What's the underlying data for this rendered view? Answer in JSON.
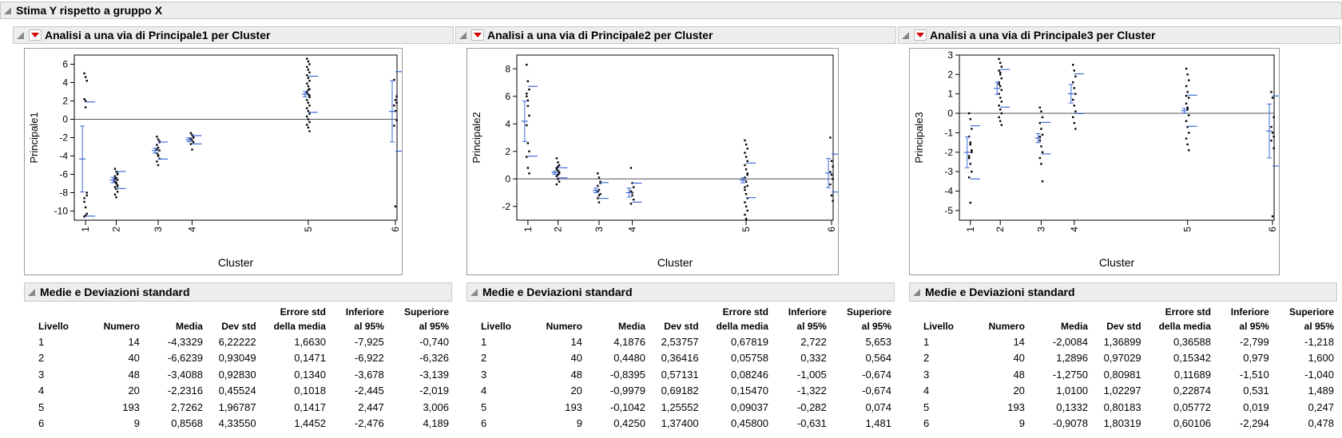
{
  "top_title": "Stima Y rispetto a gruppo X",
  "panels": [
    {
      "title": "Analisi a una via di Principale1 per Cluster",
      "ylabel": "Principale1",
      "xlabel": "Cluster",
      "table_title": "Medie e Deviazioni standard"
    },
    {
      "title": "Analisi a una via di Principale2 per Cluster",
      "ylabel": "Principale2",
      "xlabel": "Cluster",
      "table_title": "Medie e Deviazioni standard"
    },
    {
      "title": "Analisi a una via di Principale3 per Cluster",
      "ylabel": "Principale3",
      "xlabel": "Cluster",
      "table_title": "Medie e Deviazioni standard"
    }
  ],
  "table_headers": {
    "livello": "Livello",
    "numero": "Numero",
    "media": "Media",
    "devstd": "Dev std",
    "errore_1": "Errore std",
    "errore_2": "della media",
    "inferiore_1": "Inferiore",
    "inferiore_2": "al 95%",
    "superiore_1": "Superiore",
    "superiore_2": "al 95%"
  },
  "tables": [
    {
      "rows": [
        [
          "1",
          "14",
          "-4,3329",
          "6,22222",
          "1,6630",
          "-7,925",
          "-0,740"
        ],
        [
          "2",
          "40",
          "-6,6239",
          "0,93049",
          "0,1471",
          "-6,922",
          "-6,326"
        ],
        [
          "3",
          "48",
          "-3,4088",
          "0,92830",
          "0,1340",
          "-3,678",
          "-3,139"
        ],
        [
          "4",
          "20",
          "-2,2316",
          "0,45524",
          "0,1018",
          "-2,445",
          "-2,019"
        ],
        [
          "5",
          "193",
          "2,7262",
          "1,96787",
          "0,1417",
          "2,447",
          "3,006"
        ],
        [
          "6",
          "9",
          "0,8568",
          "4,33550",
          "1,4452",
          "-2,476",
          "4,189"
        ]
      ]
    },
    {
      "rows": [
        [
          "1",
          "14",
          "4,1876",
          "2,53757",
          "0,67819",
          "2,722",
          "5,653"
        ],
        [
          "2",
          "40",
          "0,4480",
          "0,36416",
          "0,05758",
          "0,332",
          "0,564"
        ],
        [
          "3",
          "48",
          "-0,8395",
          "0,57131",
          "0,08246",
          "-1,005",
          "-0,674"
        ],
        [
          "4",
          "20",
          "-0,9979",
          "0,69182",
          "0,15470",
          "-1,322",
          "-0,674"
        ],
        [
          "5",
          "193",
          "-0,1042",
          "1,25552",
          "0,09037",
          "-0,282",
          "0,074"
        ],
        [
          "6",
          "9",
          "0,4250",
          "1,37400",
          "0,45800",
          "-0,631",
          "1,481"
        ]
      ]
    },
    {
      "rows": [
        [
          "1",
          "14",
          "-2,0084",
          "1,36899",
          "0,36588",
          "-2,799",
          "-1,218"
        ],
        [
          "2",
          "40",
          "1,2896",
          "0,97029",
          "0,15342",
          "0,979",
          "1,600"
        ],
        [
          "3",
          "48",
          "-1,2750",
          "0,80981",
          "0,11689",
          "-1,510",
          "-1,040"
        ],
        [
          "4",
          "20",
          "1,0100",
          "1,02297",
          "0,22874",
          "0,531",
          "1,489"
        ],
        [
          "5",
          "193",
          "0,1332",
          "0,80183",
          "0,05772",
          "0,019",
          "0,247"
        ],
        [
          "6",
          "9",
          "-0,9078",
          "1,80319",
          "0,60106",
          "-2,294",
          "0,478"
        ]
      ]
    }
  ],
  "chart_data": [
    {
      "type": "scatter",
      "title": "",
      "xlabel": "Cluster",
      "ylabel": "Principale1",
      "ylim": [
        -11,
        7
      ],
      "yticks": [
        -10,
        -8,
        -6,
        -4,
        -2,
        0,
        2,
        4,
        6
      ],
      "categories": [
        "1",
        "2",
        "3",
        "4",
        "5",
        "6"
      ],
      "category_positions": [
        1,
        2,
        3,
        4,
        5,
        6
      ],
      "grand_mean": 0,
      "means": [
        -4.3329,
        -6.6239,
        -3.4088,
        -2.2316,
        2.7262,
        0.8568
      ],
      "std_dev": [
        6.22222,
        0.93049,
        0.9283,
        0.45524,
        1.96787,
        4.3355
      ],
      "ci_low": [
        -7.925,
        -6.922,
        -3.678,
        -2.445,
        2.447,
        -2.476
      ],
      "ci_high": [
        -0.74,
        -6.326,
        -3.139,
        -2.019,
        3.006,
        4.189
      ],
      "points": [
        [
          5,
          4.6,
          4.2,
          2.2,
          1.3,
          -8,
          -8.6,
          -9.6,
          -10.3,
          -10.6,
          -10.5,
          -8.3,
          -9,
          2
        ],
        [
          -5.4,
          -5.7,
          -6,
          -6.2,
          -6.4,
          -6.6,
          -6.8,
          -7,
          -7.2,
          -7.4,
          -7.6,
          -7.9,
          -8.2,
          -8.5,
          -5.9,
          -6.5,
          -6.9,
          -7.3
        ],
        [
          -1.9,
          -2.2,
          -2.5,
          -2.8,
          -3.1,
          -3.4,
          -3.7,
          -4,
          -4.3,
          -4.6,
          -5,
          -2.4,
          -3.3,
          -3.9
        ],
        [
          -1.5,
          -1.7,
          -1.9,
          -2.1,
          -2.3,
          -2.5,
          -2.7,
          -3.3,
          -2,
          -2.2
        ],
        [
          6.6,
          6.3,
          6,
          5.7,
          5.4,
          5.1,
          4.8,
          4.5,
          4.2,
          3.9,
          3.6,
          3.3,
          3,
          2.7,
          2.4,
          2.1,
          1.8,
          1.5,
          1.2,
          0.9,
          0.6,
          0.3,
          0,
          -0.3,
          -0.6,
          -0.9,
          -1.3,
          2.9,
          3.2,
          2.6
        ],
        [
          4.3,
          2.1,
          1.8,
          1.5,
          0.9,
          -0.1,
          -0.7,
          -9.5,
          2.5
        ]
      ]
    },
    {
      "type": "scatter",
      "title": "",
      "xlabel": "Cluster",
      "ylabel": "Principale2",
      "ylim": [
        -3,
        9
      ],
      "yticks": [
        -2,
        0,
        2,
        4,
        6,
        8
      ],
      "categories": [
        "1",
        "2",
        "3",
        "4",
        "5",
        "6"
      ],
      "category_positions": [
        1,
        2,
        3,
        4,
        5,
        6
      ],
      "grand_mean": 0,
      "means": [
        4.1876,
        0.448,
        -0.8395,
        -0.9979,
        -0.1042,
        0.425
      ],
      "std_dev": [
        2.53757,
        0.36416,
        0.57131,
        0.69182,
        1.25552,
        1.374
      ],
      "ci_low": [
        2.722,
        0.332,
        -1.005,
        -1.322,
        -0.282,
        -0.631
      ],
      "ci_high": [
        5.653,
        0.564,
        -0.674,
        -0.674,
        0.074,
        1.481
      ],
      "points": [
        [
          8.3,
          7.1,
          6.5,
          6,
          5.3,
          4.6,
          3.9,
          2.6,
          2,
          1.6,
          0.8,
          0.4,
          6.2,
          5.7
        ],
        [
          1.5,
          1.2,
          1,
          0.8,
          0.6,
          0.4,
          0.2,
          0,
          -0.2,
          -0.4,
          0.3,
          0.5,
          0.7,
          0.9
        ],
        [
          0.4,
          0.1,
          -0.2,
          -0.5,
          -0.8,
          -1.1,
          -1.4,
          -1.7,
          -0.3,
          -0.9,
          -1.2
        ],
        [
          0.8,
          -0.3,
          -0.6,
          -0.9,
          -1.2,
          -1.5,
          -1.8,
          -1
        ],
        [
          2.8,
          2.5,
          2.2,
          1.9,
          1.6,
          1.3,
          1,
          0.7,
          0.4,
          0.1,
          -0.2,
          -0.5,
          -0.8,
          -1.1,
          -1.4,
          -1.7,
          -2,
          -2.3,
          -2.6,
          -2.9,
          0.3,
          -0.6
        ],
        [
          3,
          1.3,
          0.9,
          0.5,
          0.3,
          0,
          -0.4,
          -1.2,
          -1.6
        ]
      ]
    },
    {
      "type": "scatter",
      "title": "",
      "xlabel": "Cluster",
      "ylabel": "Principale3",
      "ylim": [
        -5.5,
        3
      ],
      "yticks": [
        -5,
        -4,
        -3,
        -2,
        -1,
        0,
        1,
        2,
        3
      ],
      "categories": [
        "1",
        "2",
        "3",
        "4",
        "5",
        "6"
      ],
      "category_positions": [
        1,
        2,
        3,
        4,
        5,
        6
      ],
      "grand_mean": 0,
      "means": [
        -2.0084,
        1.2896,
        -1.275,
        1.01,
        0.1332,
        -0.9078
      ],
      "std_dev": [
        1.36899,
        0.97029,
        0.80981,
        1.02297,
        0.80183,
        1.80319
      ],
      "ci_low": [
        -2.799,
        0.979,
        -1.51,
        0.531,
        0.019,
        -2.294
      ],
      "ci_high": [
        -1.218,
        1.6,
        -1.04,
        1.489,
        0.247,
        0.478
      ],
      "points": [
        [
          0,
          -0.3,
          -0.8,
          -1.2,
          -1.6,
          -2,
          -2.3,
          -2.6,
          -3,
          -3.3,
          -4.6,
          -1.9,
          -2.2,
          -1.5
        ],
        [
          2.8,
          2.6,
          2.4,
          2.2,
          2,
          1.8,
          1.6,
          1.4,
          1.2,
          1,
          0.8,
          0.6,
          0.4,
          0.2,
          0,
          -0.2,
          -0.4,
          -0.6,
          1.5,
          2.1
        ],
        [
          0.3,
          0.1,
          -0.2,
          -0.5,
          -0.8,
          -1.1,
          -1.4,
          -1.7,
          -2,
          -2.3,
          -2.6,
          -3.5,
          -1.2
        ],
        [
          2.5,
          2.2,
          1.9,
          1.6,
          1.3,
          1,
          0.7,
          0.4,
          0.1,
          -0.2,
          -0.5,
          -0.8
        ],
        [
          2.3,
          2,
          1.7,
          1.4,
          1.1,
          0.8,
          0.5,
          0.2,
          -0.1,
          -0.4,
          -0.7,
          -1,
          -1.3,
          -1.6,
          -1.9,
          0.9,
          0.3
        ],
        [
          1.1,
          0.8,
          -0.2,
          -0.7,
          -1,
          -1.2,
          -1.4,
          -5.3,
          -1.8
        ]
      ]
    }
  ]
}
